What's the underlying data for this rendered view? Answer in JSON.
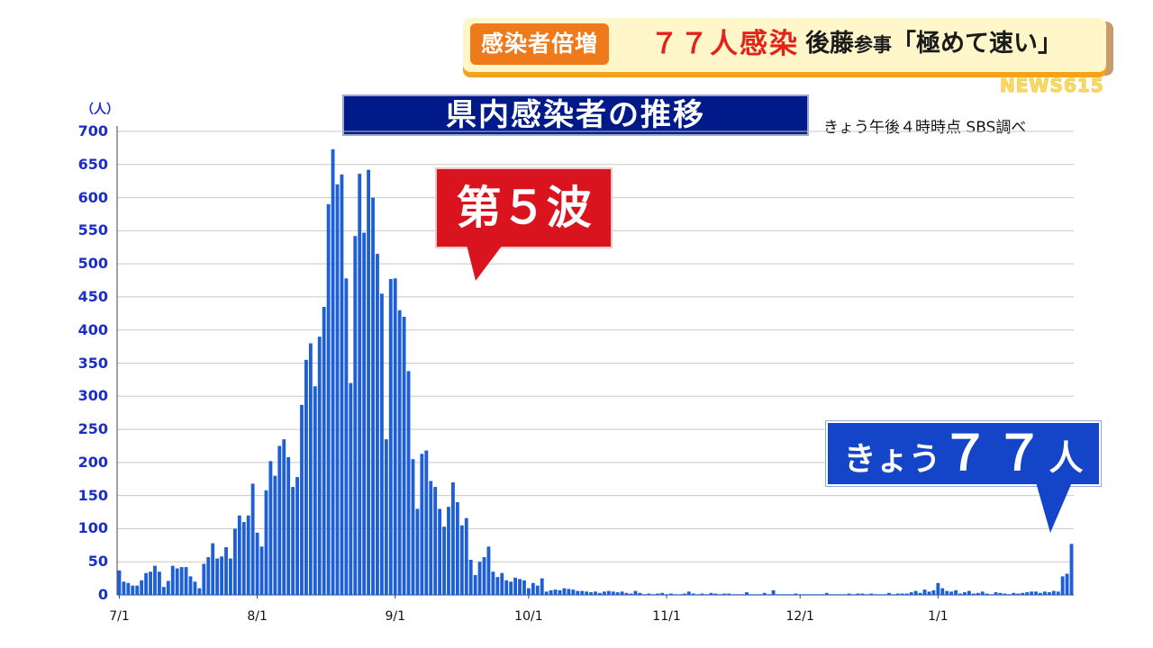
{
  "banner": {
    "tag": "感染者倍増",
    "headline_red": "７７人感染",
    "headline_black_1": "後藤",
    "headline_black_small": "参事",
    "headline_black_2": "「極めて速い」",
    "logo": "NEWS615"
  },
  "chart_title": "県内感染者の推移",
  "source_note": "きょう午後４時時点  SBS調べ",
  "wave_callout": "第５波",
  "today_callout": {
    "part1": "きょう",
    "part2": "７７",
    "part3": "人"
  },
  "colors": {
    "bar": "#1f5fd6",
    "bar_edge": "#5b8ff0",
    "title_bg": "#001a8a",
    "wave_bg": "#d9141e",
    "tag_bg": "#ef7a1c",
    "tick_text": "#1c2ec9"
  },
  "chart_data": {
    "type": "bar",
    "ylabel_unit": "（人）",
    "ylim": [
      0,
      700
    ],
    "yticks": [
      0,
      50,
      100,
      150,
      200,
      250,
      300,
      350,
      400,
      450,
      500,
      550,
      600,
      650,
      700
    ],
    "grid": true,
    "x_range": [
      "7/1",
      "1/6"
    ],
    "xticks": [
      "7/1",
      "8/1",
      "9/1",
      "10/1",
      "11/1",
      "12/1",
      "1/1"
    ],
    "values": [
      37,
      20,
      18,
      14,
      14,
      22,
      33,
      35,
      44,
      35,
      12,
      21,
      44,
      40,
      42,
      42,
      28,
      20,
      10,
      47,
      57,
      78,
      55,
      58,
      72,
      55,
      100,
      120,
      110,
      120,
      168,
      94,
      73,
      158,
      202,
      180,
      225,
      235,
      208,
      163,
      178,
      287,
      355,
      380,
      315,
      390,
      435,
      590,
      673,
      620,
      635,
      478,
      320,
      542,
      636,
      547,
      642,
      600,
      515,
      455,
      235,
      477,
      478,
      430,
      420,
      338,
      205,
      130,
      213,
      218,
      172,
      163,
      130,
      103,
      133,
      170,
      140,
      105,
      116,
      53,
      30,
      50,
      57,
      73,
      35,
      27,
      33,
      22,
      20,
      26,
      24,
      22,
      10,
      18,
      14,
      25,
      5,
      7,
      8,
      7,
      10,
      9,
      8,
      6,
      6,
      5,
      4,
      5,
      3,
      5,
      6,
      5,
      4,
      5,
      3,
      2,
      6,
      3,
      1,
      2,
      1,
      2,
      3,
      1,
      2,
      1,
      1,
      2,
      5,
      2,
      1,
      2,
      1,
      3,
      2,
      1,
      2,
      2,
      1,
      1,
      1,
      4,
      1,
      1,
      1,
      3,
      1,
      7,
      1,
      1,
      1,
      1,
      2,
      1,
      1,
      1,
      1,
      1,
      1,
      3,
      1,
      1,
      1,
      1,
      2,
      1,
      2,
      2,
      1,
      2,
      1,
      1,
      1,
      3,
      1,
      2,
      2,
      2,
      4,
      6,
      3,
      8,
      5,
      7,
      18,
      10,
      6,
      5,
      7,
      2,
      4,
      6,
      2,
      3,
      5,
      2,
      1,
      4,
      3,
      2,
      1,
      3,
      2,
      3,
      4,
      5,
      5,
      3,
      5,
      4,
      6,
      5,
      28,
      32,
      77
    ]
  }
}
